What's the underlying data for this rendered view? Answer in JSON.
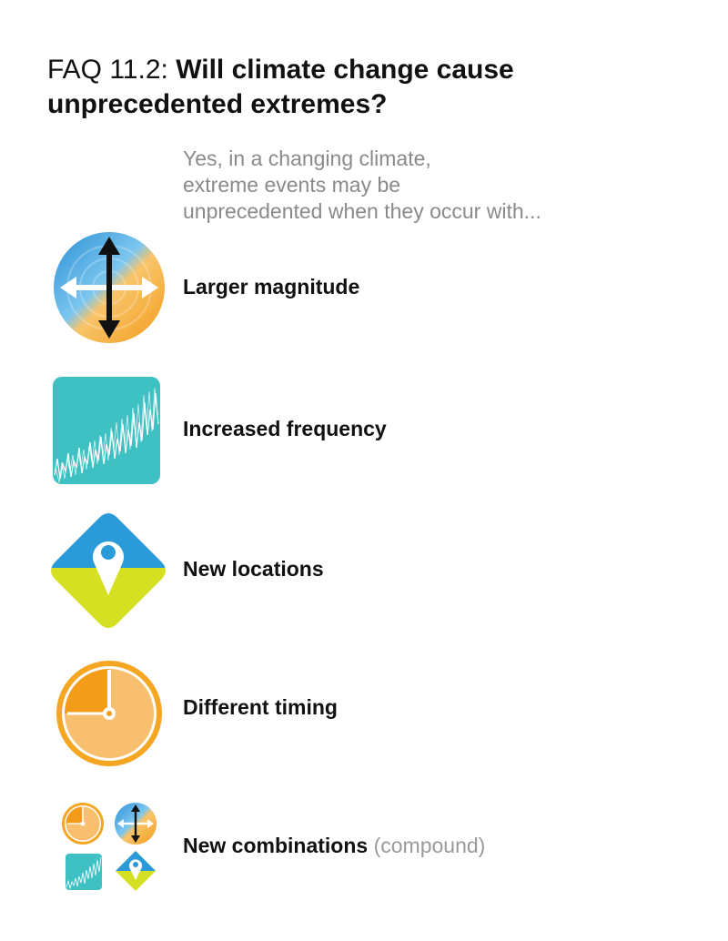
{
  "header": {
    "prefix": "FAQ 11.2:",
    "title": "Will climate change cause unprecedented extremes?"
  },
  "intro": {
    "lines": [
      "Yes, in a changing climate,",
      "extreme events may be",
      "unprecedented when they occur with..."
    ]
  },
  "items": [
    {
      "label": "Larger magnitude",
      "icon": "magnitude-arrows-icon"
    },
    {
      "label": "Increased frequency",
      "icon": "frequency-timeseries-icon"
    },
    {
      "label": "New locations",
      "icon": "location-pin-icon"
    },
    {
      "label": "Different timing",
      "icon": "clock-icon"
    },
    {
      "label": "New combinations",
      "note": "(compound)",
      "icon": "combined-icons-icon"
    }
  ],
  "colors": {
    "blue": "#2a9ad8",
    "orange": "#f5a623",
    "teal": "#3fc0c2",
    "yellow_green": "#d4e021",
    "grey_text": "#8a8a8a"
  }
}
